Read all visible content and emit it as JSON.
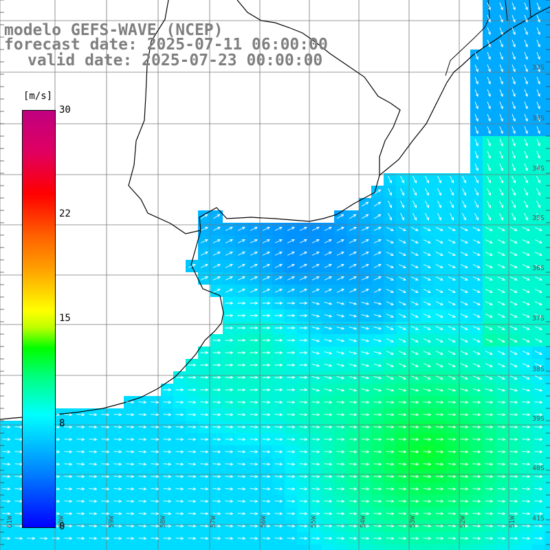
{
  "title": {
    "model": "modelo GEFS-WAVE (NCEP)",
    "forecast": "forecast date: 2025-07-11 06:00:00",
    "valid": "valid date: 2025-07-23 00:00:00"
  },
  "colorbar": {
    "unit": "[m/s]",
    "ticks": [
      "30",
      "22",
      "15",
      "8",
      "0"
    ],
    "colors": [
      "#0000ff",
      "#0080ff",
      "#00c0ff",
      "#00ffff",
      "#00ff80",
      "#00ff00",
      "#ffff00",
      "#ff8000",
      "#ff0000",
      "#c00080"
    ]
  },
  "lat_labels": [
    "32S",
    "33S",
    "34S",
    "35S",
    "36S",
    "37S",
    "38S",
    "39S",
    "40S",
    "41S"
  ],
  "lon_labels": [
    "61W",
    "60W",
    "59W",
    "58W",
    "57W",
    "56W",
    "55W",
    "54W",
    "53W",
    "52W",
    "51W"
  ]
}
